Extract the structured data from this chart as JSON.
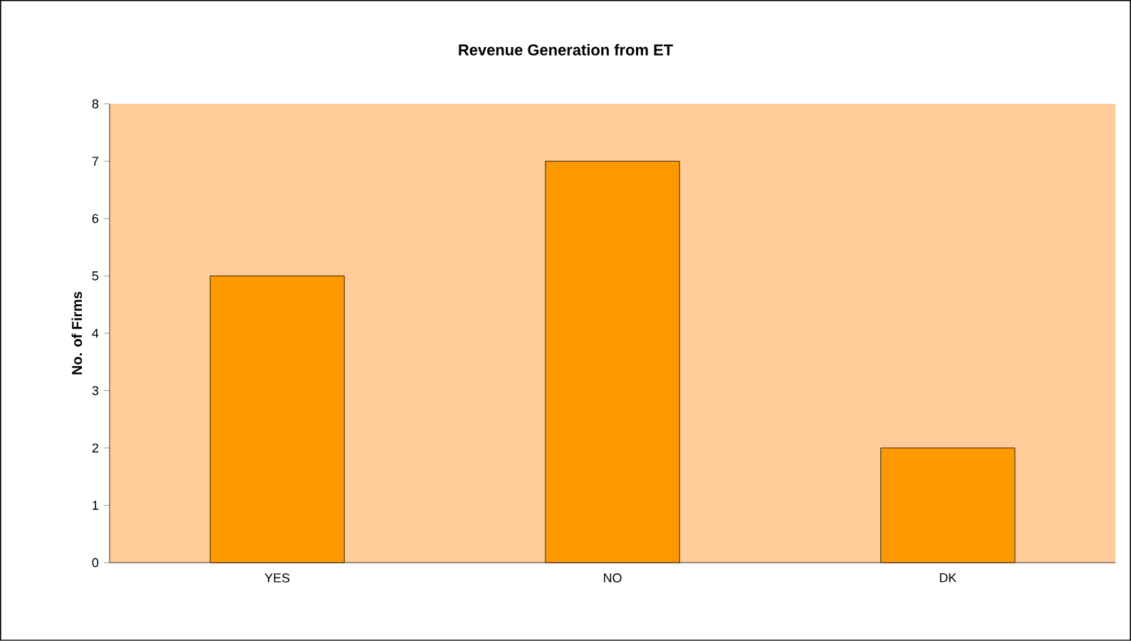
{
  "chart_data": {
    "type": "bar",
    "title": "Revenue Generation from ET",
    "ylabel": "No. of Firms",
    "categories": [
      "YES",
      "NO",
      "DK"
    ],
    "values": [
      5,
      7,
      2
    ],
    "color": "#ff9900",
    "ylim": [
      0,
      8
    ],
    "yticks": [
      0,
      1,
      2,
      3,
      4,
      5,
      6,
      7,
      8
    ]
  }
}
